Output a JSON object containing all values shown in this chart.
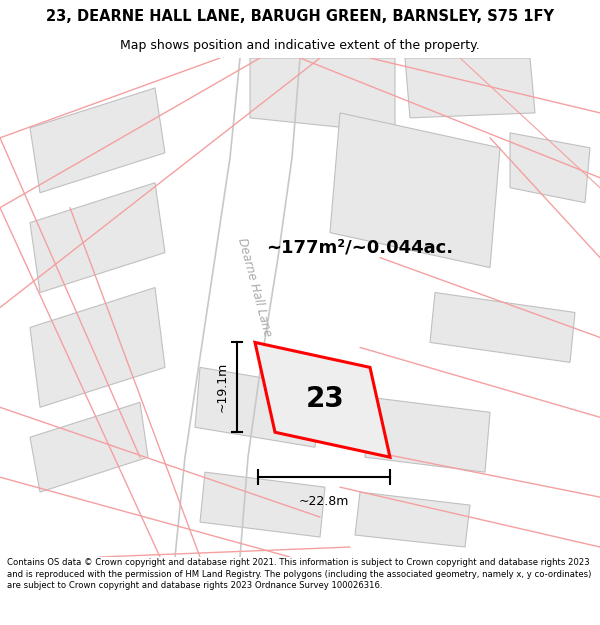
{
  "title_line1": "23, DEARNE HALL LANE, BARUGH GREEN, BARNSLEY, S75 1FY",
  "title_line2": "Map shows position and indicative extent of the property.",
  "footer_text": "Contains OS data © Crown copyright and database right 2021. This information is subject to Crown copyright and database rights 2023 and is reproduced with the permission of HM Land Registry. The polygons (including the associated geometry, namely x, y co-ordinates) are subject to Crown copyright and database rights 2023 Ordnance Survey 100026316.",
  "map_bg": "#ffffff",
  "road_line_color": "#f5a0a0",
  "road_curve_color": "#c8c8c8",
  "building_face": "#e8e8e8",
  "building_edge": "#c0c0c0",
  "plot_edge": "#ff0000",
  "plot_face": "#eeeeee",
  "area_text": "~177m²/~0.044ac.",
  "width_text": "~22.8m",
  "height_text": "~19.1m",
  "label_23": "23",
  "road_label": "Dearne Hall Lane",
  "title_fontsize": 10.5,
  "subtitle_fontsize": 9,
  "footer_fontsize": 6.1,
  "area_fontsize": 13,
  "dim_fontsize": 9,
  "num_fontsize": 20,
  "road_lbl_fontsize": 8.5
}
